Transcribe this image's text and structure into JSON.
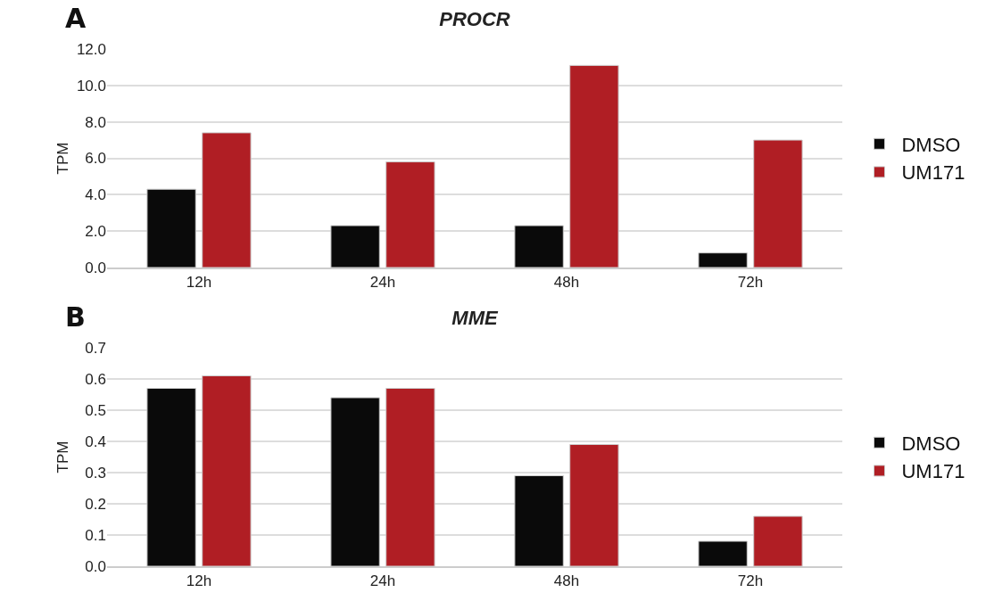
{
  "chart_data": [
    {
      "type": "bar",
      "title": "PROCR",
      "ylabel": "TPM",
      "annotations": [
        "A"
      ],
      "categories": [
        "12h",
        "24h",
        "48h",
        "72h"
      ],
      "series": [
        {
          "name": "DMSO",
          "color": "#0a0a0a",
          "values": [
            4.3,
            2.3,
            2.3,
            0.8
          ]
        },
        {
          "name": "UM171",
          "color": "#b01e24",
          "values": [
            7.4,
            5.8,
            11.1,
            7.0
          ]
        }
      ],
      "ylim": [
        0,
        12
      ],
      "yticks": [
        {
          "value": 0,
          "label": "0.0"
        },
        {
          "value": 2,
          "label": "2.0"
        },
        {
          "value": 4,
          "label": "4.0"
        },
        {
          "value": 6,
          "label": "6.0"
        },
        {
          "value": 8,
          "label": "8.0"
        },
        {
          "value": 10,
          "label": "10.0"
        },
        {
          "value": 12,
          "label": "12.0"
        }
      ],
      "grid": "y",
      "legend": "right"
    },
    {
      "type": "bar",
      "title": "MME",
      "ylabel": "TPM",
      "annotations": [
        "B"
      ],
      "categories": [
        "12h",
        "24h",
        "48h",
        "72h"
      ],
      "series": [
        {
          "name": "DMSO",
          "color": "#0a0a0a",
          "values": [
            0.57,
            0.54,
            0.29,
            0.08
          ]
        },
        {
          "name": "UM171",
          "color": "#b01e24",
          "values": [
            0.61,
            0.57,
            0.39,
            0.16
          ]
        }
      ],
      "ylim": [
        0,
        0.7
      ],
      "yticks": [
        {
          "value": 0,
          "label": "0.0"
        },
        {
          "value": 0.1,
          "label": "0.1"
        },
        {
          "value": 0.2,
          "label": "0.2"
        },
        {
          "value": 0.3,
          "label": "0.3"
        },
        {
          "value": 0.4,
          "label": "0.4"
        },
        {
          "value": 0.5,
          "label": "0.5"
        },
        {
          "value": 0.6,
          "label": "0.6"
        },
        {
          "value": 0.7,
          "label": "0.7"
        }
      ],
      "grid": "y",
      "legend": "right"
    }
  ]
}
